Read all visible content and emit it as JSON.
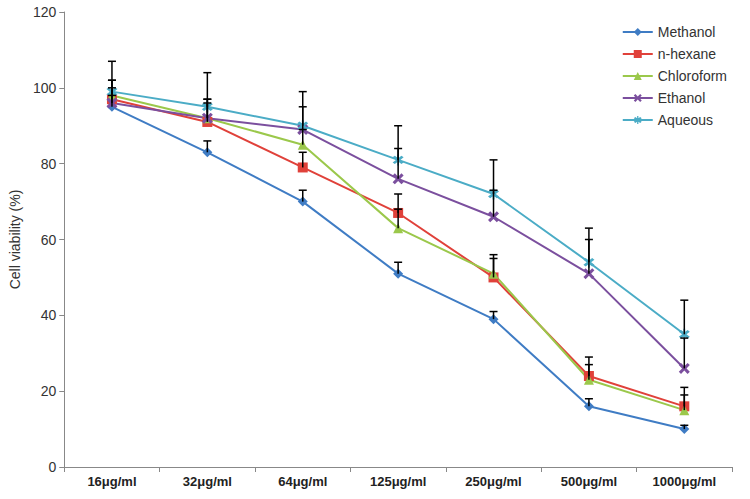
{
  "chart_data": {
    "type": "line",
    "y_label": "Cell viability (%)",
    "categories": [
      "16μg/ml",
      "32μg/ml",
      "64μg/ml",
      "125μg/ml",
      "250μg/ml",
      "500μg/ml",
      "1000μg/ml"
    ],
    "ylim": [
      0,
      120
    ],
    "yticks": [
      0,
      20,
      40,
      60,
      80,
      100,
      120
    ],
    "grid": false,
    "legend": "upper right",
    "series": [
      {
        "name": "Methanol",
        "color": "#3f7cc4",
        "marker": "diamond",
        "values": [
          95,
          83,
          70,
          51,
          39,
          16,
          10
        ],
        "errors": [
          3,
          3,
          3,
          3,
          2,
          2,
          1
        ]
      },
      {
        "name": "n-hexane",
        "color": "#e0413a",
        "marker": "square",
        "values": [
          97,
          91,
          79,
          67,
          50,
          24,
          16
        ],
        "errors": [
          3,
          5,
          4,
          5,
          6,
          5,
          5
        ]
      },
      {
        "name": "Chloroform",
        "color": "#9bc84b",
        "marker": "triangle",
        "values": [
          98,
          92,
          85,
          63,
          51,
          23,
          15
        ],
        "errors": [
          4,
          5,
          4,
          5,
          4,
          4,
          4
        ]
      },
      {
        "name": "Ethanol",
        "color": "#7b4f9e",
        "marker": "x",
        "values": [
          96,
          92,
          89,
          76,
          66,
          51,
          26
        ],
        "errors": [
          6,
          5,
          6,
          8,
          7,
          9,
          8
        ]
      },
      {
        "name": "Aqueous",
        "color": "#4bacc6",
        "marker": "star",
        "values": [
          99,
          95,
          90,
          81,
          72,
          54,
          35
        ],
        "errors": [
          8,
          9,
          9,
          9,
          9,
          9,
          9
        ]
      }
    ]
  }
}
